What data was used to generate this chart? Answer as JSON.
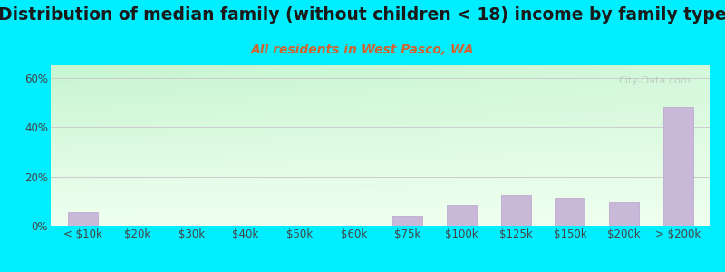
{
  "title": "Distribution of median family (without children < 18) income by family type",
  "subtitle": "All residents in West Pasco, WA",
  "categories": [
    "< $10k",
    "$20k",
    "$30k",
    "$40k",
    "$50k",
    "$60k",
    "$75k",
    "$100k",
    "$125k",
    "$150k",
    "$200k",
    "> $200k"
  ],
  "values": [
    5.5,
    0.0,
    0.0,
    0.0,
    0.0,
    0.0,
    4.0,
    8.5,
    12.5,
    11.5,
    9.5,
    48.0
  ],
  "bar_color": "#c9b8d8",
  "bar_edge_color": "#b8a0cc",
  "background_outer": "#00eeff",
  "ylim": [
    0,
    65
  ],
  "yticks": [
    0,
    20,
    40,
    60
  ],
  "ytick_labels": [
    "0%",
    "20%",
    "40%",
    "60%"
  ],
  "title_fontsize": 13.5,
  "subtitle_fontsize": 10,
  "tick_fontsize": 8.5,
  "title_color": "#1a1a1a",
  "subtitle_color": "#cc6633",
  "tick_color": "#444444",
  "watermark": "City-Data.com",
  "grid_color": "#cccccc"
}
